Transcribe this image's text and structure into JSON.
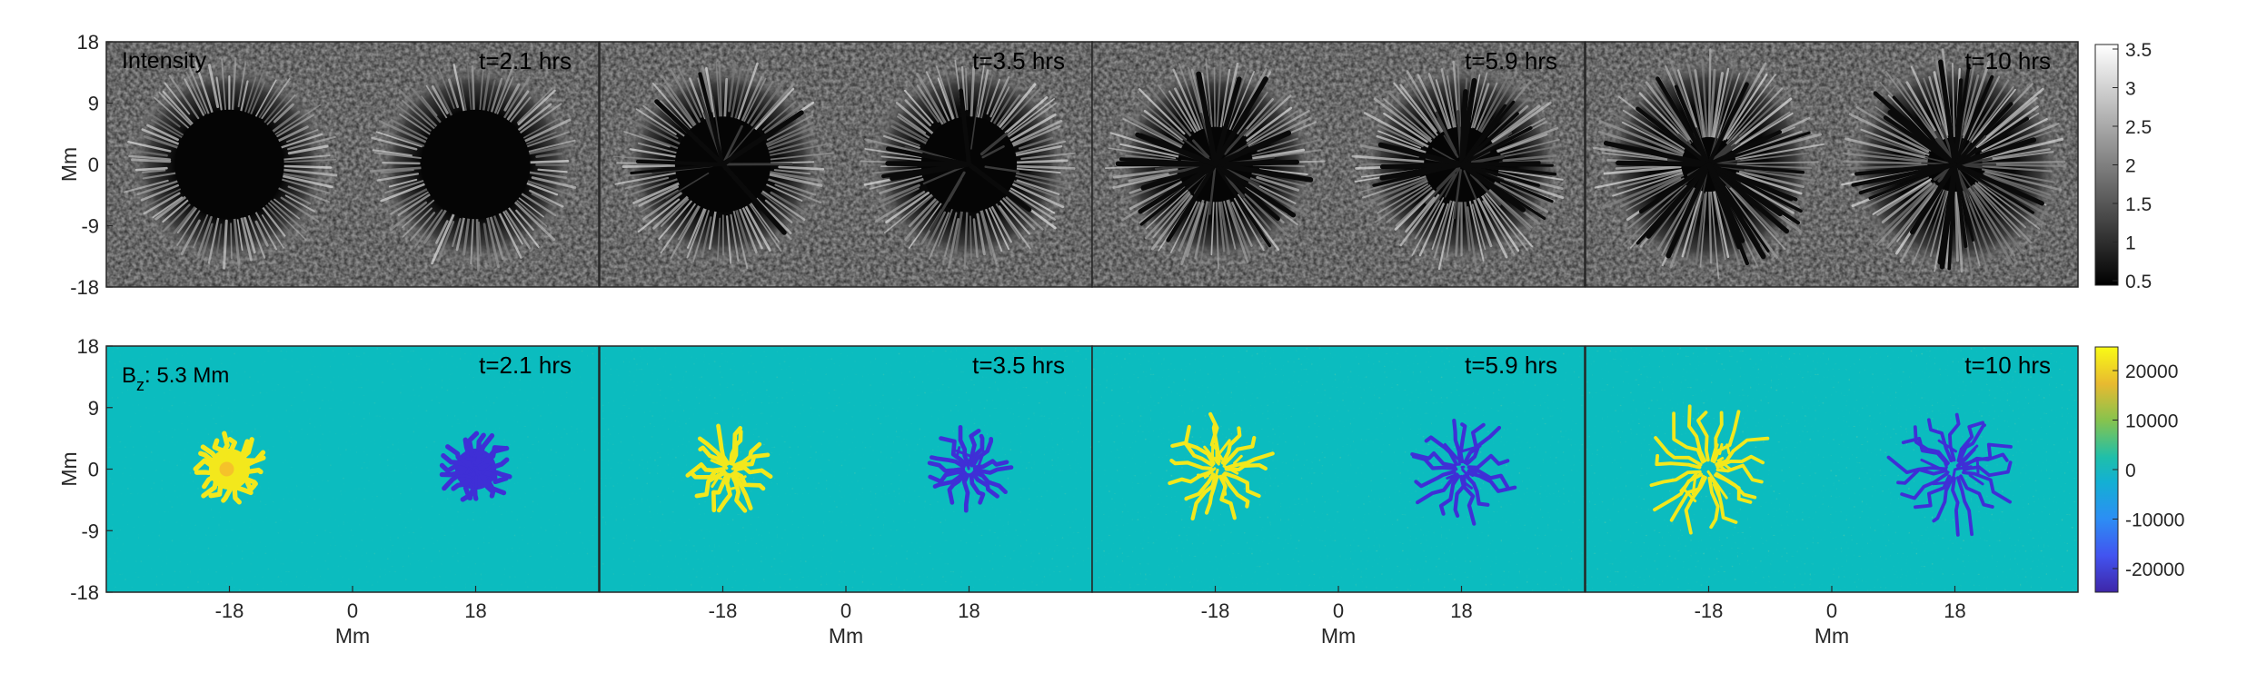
{
  "chart_data": [
    {
      "type": "heatmap",
      "row": "intensity",
      "panel_label": "Intensity",
      "panels": [
        {
          "time_label": "t=2.1 hrs",
          "spots": [
            {
              "x": -18,
              "y": 0,
              "umbra_radius": 8,
              "penumbra_radius": 14,
              "polarity": "positive",
              "fragmentation": 0.0
            },
            {
              "x": 18,
              "y": 0,
              "umbra_radius": 8,
              "penumbra_radius": 14,
              "polarity": "negative",
              "fragmentation": 0.0
            }
          ]
        },
        {
          "time_label": "t=3.5 hrs",
          "spots": [
            {
              "x": -18,
              "y": 0,
              "umbra_radius": 7,
              "penumbra_radius": 14,
              "polarity": "positive",
              "fragmentation": 0.2
            },
            {
              "x": 18,
              "y": 0,
              "umbra_radius": 7,
              "penumbra_radius": 14,
              "polarity": "negative",
              "fragmentation": 0.2
            }
          ]
        },
        {
          "time_label": "t=5.9 hrs",
          "spots": [
            {
              "x": -18,
              "y": 0,
              "umbra_radius": 5.5,
              "penumbra_radius": 14,
              "polarity": "positive",
              "fragmentation": 0.55
            },
            {
              "x": 18,
              "y": 0,
              "umbra_radius": 5.5,
              "penumbra_radius": 14,
              "polarity": "negative",
              "fragmentation": 0.55
            }
          ]
        },
        {
          "time_label": "t=10 hrs",
          "spots": [
            {
              "x": -18,
              "y": 0,
              "umbra_radius": 4,
              "penumbra_radius": 15,
              "polarity": "positive",
              "fragmentation": 0.85
            },
            {
              "x": 18,
              "y": 0,
              "umbra_radius": 4,
              "penumbra_radius": 15,
              "polarity": "negative",
              "fragmentation": 0.85
            }
          ]
        }
      ],
      "xlim": [
        -36,
        36
      ],
      "ylim": [
        -18,
        18
      ],
      "ylabel": "Mm",
      "yticks": [
        18,
        9,
        0,
        -9,
        -18
      ],
      "colorbar": {
        "ticks": [
          "3.5",
          "3",
          "2.5",
          "2",
          "1.5",
          "1",
          "0.5"
        ],
        "range": [
          0.5,
          3.5
        ],
        "colormap": "gray"
      }
    },
    {
      "type": "heatmap",
      "row": "bz",
      "panel_label_main": "B",
      "panel_label_sub": "z",
      "panel_label_rest": ": 5.3 Mm",
      "panels": [
        {
          "time_label": "t=2.1 hrs",
          "spots": [
            {
              "x": -18,
              "y": 0,
              "radius": 5,
              "sign": 1,
              "branches": 20,
              "fragmentation": 0.15
            },
            {
              "x": 18,
              "y": 0,
              "radius": 5,
              "sign": -1,
              "branches": 20,
              "fragmentation": 0.15
            }
          ]
        },
        {
          "time_label": "t=3.5 hrs",
          "spots": [
            {
              "x": -17,
              "y": 0,
              "radius": 6,
              "sign": 1,
              "branches": 16,
              "fragmentation": 0.4
            },
            {
              "x": 18,
              "y": 0,
              "radius": 6,
              "sign": -1,
              "branches": 16,
              "fragmentation": 0.4
            }
          ]
        },
        {
          "time_label": "t=5.9 hrs",
          "spots": [
            {
              "x": -17.5,
              "y": 0,
              "radius": 7.5,
              "sign": 1,
              "branches": 16,
              "fragmentation": 0.6
            },
            {
              "x": 18,
              "y": 0,
              "radius": 7.5,
              "sign": -1,
              "branches": 16,
              "fragmentation": 0.6
            }
          ]
        },
        {
          "time_label": "t=10 hrs",
          "spots": [
            {
              "x": -18,
              "y": 0,
              "radius": 9,
              "sign": 1,
              "branches": 18,
              "fragmentation": 0.75
            },
            {
              "x": 18,
              "y": 0,
              "radius": 9,
              "sign": -1,
              "branches": 18,
              "fragmentation": 0.75
            }
          ]
        }
      ],
      "xlim": [
        -36,
        36
      ],
      "ylim": [
        -18,
        18
      ],
      "xlabel": "Mm",
      "ylabel": "Mm",
      "xticks": [
        -18,
        0,
        18
      ],
      "xtick_labels": [
        "-18",
        "0",
        "18"
      ],
      "yticks": [
        18,
        9,
        0,
        -9,
        -18
      ],
      "colorbar": {
        "ticks": [
          "20000",
          "10000",
          "0",
          "-10000",
          "-20000"
        ],
        "range": [
          -25000,
          25000
        ],
        "colormap": "parula"
      }
    }
  ],
  "colors": {
    "bz_background": "#0bbcbf",
    "bz_positive": "#f3e81c",
    "bz_negative": "#3f2fd6",
    "axis_text": "#262626"
  }
}
